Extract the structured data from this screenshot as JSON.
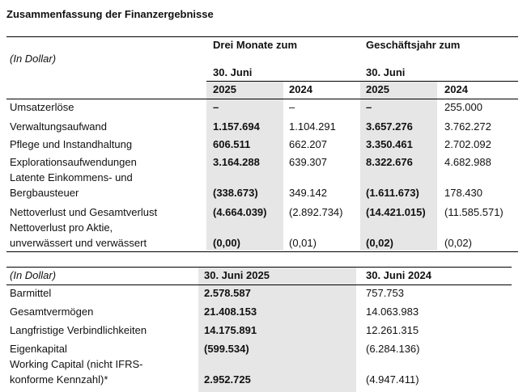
{
  "title": "Zusammenfassung der Finanzergebnisse",
  "results_table": {
    "unit_label": "(In Dollar)",
    "group_headers": [
      "Drei Monate zum",
      "Geschäftsjahr zum"
    ],
    "date_headers": [
      "30. Juni",
      "30. Juni"
    ],
    "years": [
      "2025",
      "2024",
      "2025",
      "2024"
    ],
    "rows": [
      {
        "label": [
          "Umsatzerlöse"
        ],
        "values": [
          "–",
          "–",
          "–",
          "255.000"
        ]
      },
      {
        "label": [
          "Verwaltungsaufwand"
        ],
        "values": [
          "1.157.694",
          "1.104.291",
          "3.657.276",
          "3.762.272"
        ]
      },
      {
        "label": [
          "Pflege und Instandhaltung"
        ],
        "values": [
          "606.511",
          "662.207",
          "3.350.461",
          "2.702.092"
        ]
      },
      {
        "label": [
          "Explorationsaufwendungen"
        ],
        "values": [
          "3.164.288",
          "639.307",
          "8.322.676",
          "4.682.988"
        ]
      },
      {
        "label": [
          "Latente Einkommens- und",
          "Bergbausteuer"
        ],
        "values": [
          "(338.673)",
          "349.142",
          "(1.611.673)",
          "178.430"
        ]
      },
      {
        "label": [
          "Nettoverlust und Gesamtverlust"
        ],
        "values": [
          "(4.664.039)",
          "(2.892.734)",
          "(14.421.015)",
          "(11.585.571)"
        ]
      },
      {
        "label": [
          "Nettoverlust pro Aktie,",
          "unverwässert und verwässert"
        ],
        "values": [
          "(0,00)",
          "(0,01)",
          "(0,02)",
          "(0,02)"
        ]
      }
    ]
  },
  "balance_table": {
    "unit_label": "(In Dollar)",
    "headers": [
      "30. Juni 2025",
      "30. Juni 2024"
    ],
    "rows": [
      {
        "label": [
          "Barmittel"
        ],
        "values": [
          "2.578.587",
          "757.753"
        ]
      },
      {
        "label": [
          "Gesamtvermögen"
        ],
        "values": [
          "21.408.153",
          "14.063.983"
        ]
      },
      {
        "label": [
          "Langfristige Verbindlichkeiten"
        ],
        "values": [
          "14.175.891",
          "12.261.315"
        ]
      },
      {
        "label": [
          "Eigenkapital"
        ],
        "values": [
          "(599.534)",
          "(6.284.136)"
        ]
      },
      {
        "label": [
          "Working Capital (nicht IFRS-",
          " konforme Kennzahl)*"
        ],
        "values": [
          "2.952.725",
          "(4.947.411)"
        ]
      }
    ]
  }
}
